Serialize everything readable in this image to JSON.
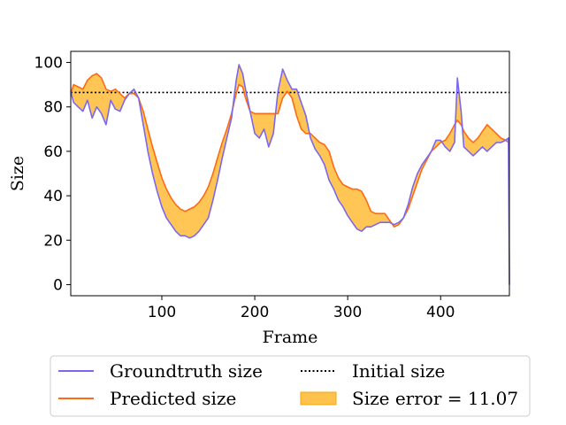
{
  "chart_data": {
    "type": "line",
    "xlabel": "Frame",
    "ylabel": "Size",
    "xlim": [
      2,
      474
    ],
    "ylim": [
      -5,
      105
    ],
    "xticks": [
      100,
      200,
      300,
      400
    ],
    "yticks": [
      0,
      20,
      40,
      60,
      80,
      100
    ],
    "grid": false,
    "legend_position": "bottom",
    "colors": {
      "groundtruth": "#7b68ee",
      "predicted": "#ff6a13",
      "initial": "#000000",
      "error_fill": "#ffc34d",
      "error_edge": "#f2a900"
    },
    "initial_size": 86.5,
    "series": [
      {
        "name": "Groundtruth size",
        "x": [
          2,
          5,
          10,
          15,
          20,
          25,
          30,
          35,
          40,
          45,
          50,
          55,
          60,
          65,
          70,
          75,
          80,
          85,
          90,
          95,
          100,
          105,
          110,
          115,
          120,
          125,
          130,
          135,
          140,
          145,
          150,
          155,
          160,
          165,
          170,
          175,
          180,
          183,
          187,
          190,
          195,
          200,
          205,
          210,
          215,
          220,
          225,
          230,
          235,
          240,
          245,
          250,
          255,
          260,
          265,
          270,
          275,
          280,
          285,
          290,
          295,
          300,
          305,
          310,
          315,
          320,
          325,
          330,
          335,
          340,
          345,
          350,
          355,
          360,
          365,
          370,
          375,
          380,
          385,
          390,
          395,
          400,
          405,
          410,
          415,
          418,
          422,
          425,
          430,
          435,
          440,
          445,
          450,
          455,
          460,
          465,
          470,
          473,
          474
        ],
        "values": [
          87,
          82,
          80,
          78,
          83,
          75,
          80,
          77,
          72,
          83,
          79,
          78,
          83,
          86,
          88,
          84,
          72,
          60,
          50,
          42,
          35,
          30,
          27,
          24,
          22,
          22,
          21,
          22,
          24,
          27,
          30,
          38,
          47,
          57,
          66,
          75,
          92,
          99,
          95,
          88,
          78,
          68,
          66,
          70,
          62,
          68,
          87,
          97,
          92,
          88,
          88,
          82,
          76,
          66,
          61,
          58,
          54,
          47,
          43,
          38,
          35,
          31,
          28,
          25,
          24,
          26,
          26,
          27,
          28,
          28,
          28,
          27,
          28,
          30,
          36,
          44,
          50,
          54,
          57,
          60,
          65,
          65,
          62,
          60,
          64,
          93,
          78,
          62,
          60,
          58,
          60,
          62,
          60,
          62,
          64,
          64,
          65,
          66,
          0
        ]
      },
      {
        "name": "Predicted size",
        "x": [
          2,
          5,
          10,
          15,
          20,
          25,
          30,
          35,
          40,
          45,
          50,
          55,
          60,
          65,
          70,
          75,
          80,
          85,
          90,
          95,
          100,
          105,
          110,
          115,
          120,
          125,
          130,
          135,
          140,
          145,
          150,
          155,
          160,
          165,
          170,
          175,
          180,
          183,
          187,
          190,
          195,
          200,
          205,
          210,
          215,
          220,
          225,
          230,
          235,
          240,
          245,
          250,
          255,
          260,
          265,
          270,
          275,
          280,
          285,
          290,
          295,
          300,
          305,
          310,
          315,
          320,
          325,
          330,
          335,
          340,
          345,
          350,
          355,
          360,
          365,
          370,
          375,
          380,
          385,
          390,
          395,
          400,
          405,
          410,
          415,
          418,
          422,
          425,
          430,
          435,
          440,
          445,
          450,
          455,
          460,
          465,
          470,
          473,
          474
        ],
        "values": [
          86,
          90,
          89,
          88,
          92,
          94,
          95,
          93,
          88,
          87,
          88,
          86,
          84,
          86,
          86,
          84,
          78,
          70,
          62,
          55,
          48,
          43,
          39,
          36,
          34,
          33,
          34,
          35,
          37,
          40,
          44,
          50,
          57,
          64,
          70,
          77,
          86,
          90,
          89,
          84,
          78,
          77,
          77,
          77,
          77,
          77,
          77,
          84,
          87,
          84,
          76,
          70,
          68,
          68,
          66,
          64,
          63,
          60,
          53,
          48,
          45,
          44,
          43,
          43,
          42,
          38,
          33,
          32,
          32,
          32,
          29,
          26,
          27,
          30,
          34,
          40,
          46,
          52,
          56,
          60,
          62,
          64,
          65,
          68,
          72,
          74,
          72,
          69,
          66,
          64,
          66,
          69,
          72,
          70,
          68,
          66,
          65,
          64,
          64
        ]
      }
    ],
    "legend": {
      "groundtruth": "Groundtruth size",
      "predicted": "Predicted size",
      "initial": "Initial size",
      "error": "Size error = 11.07"
    }
  }
}
